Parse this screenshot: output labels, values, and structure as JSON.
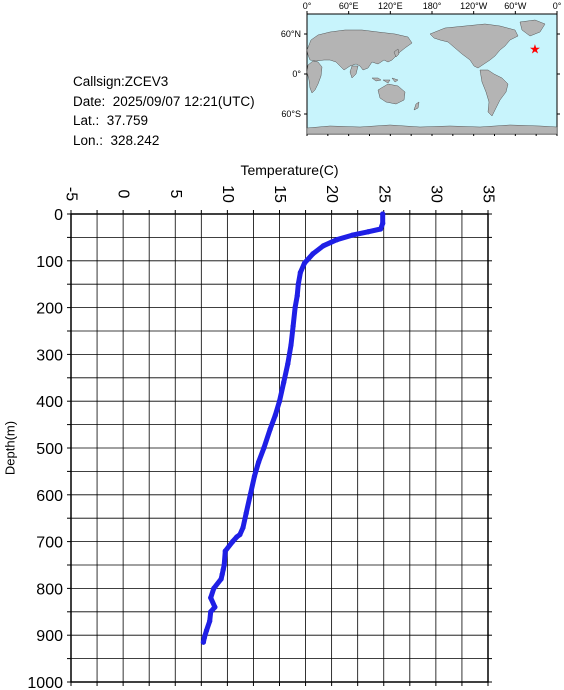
{
  "info": {
    "callsign": "Callsign:ZCEV3",
    "date": "Date:  2025/09/07 12:21(UTC)",
    "lat": "Lat.:  37.759",
    "lon": "Lon.:  328.242"
  },
  "map": {
    "lon_ticks": [
      "0°",
      "60°E",
      "120°E",
      "180°",
      "120°W",
      "60°W",
      "0°"
    ],
    "lat_ticks": [
      "60°N",
      "0°",
      "60°S"
    ],
    "ocean_color": "#c8f4fc",
    "land_color": "#b4b4b4",
    "marker_color": "#ff0000",
    "marker": {
      "lon": 328.242,
      "lat": 37.759
    }
  },
  "chart_data": {
    "type": "line",
    "title": "",
    "xlabel": "Temperature(C)",
    "ylabel": "Depth(m)",
    "xlim": [
      -5,
      35
    ],
    "ylim": [
      0,
      1000
    ],
    "y_inverted": true,
    "x_ticks": [
      "-5",
      "0",
      "5",
      "10",
      "15",
      "20",
      "25",
      "30",
      "35"
    ],
    "y_ticks": [
      "0",
      "100",
      "200",
      "300",
      "400",
      "500",
      "600",
      "700",
      "800",
      "900",
      "1000"
    ],
    "grid": true,
    "series_color": "#1f1fe6",
    "series": [
      {
        "temperature": [
          24.9,
          24.9,
          24.7,
          23.5,
          22.0,
          20.5,
          19.2,
          18.2,
          17.4,
          17.0,
          16.8,
          16.7,
          16.5,
          16.3,
          16.1,
          15.8,
          15.4,
          15.0,
          14.6,
          14.1,
          13.5,
          13.0,
          12.6,
          12.2,
          11.8,
          11.5,
          11.2,
          10.9,
          10.5,
          9.8,
          9.7,
          9.6,
          9.5,
          9.4,
          8.7,
          8.4,
          8.8,
          8.4,
          8.3,
          8.0,
          7.8,
          7.7
        ],
        "depth": [
          0,
          20,
          32,
          38,
          45,
          55,
          68,
          85,
          105,
          125,
          150,
          175,
          200,
          240,
          280,
          320,
          360,
          400,
          430,
          460,
          500,
          530,
          560,
          600,
          640,
          670,
          685,
          690,
          700,
          720,
          750,
          760,
          770,
          780,
          800,
          820,
          840,
          850,
          870,
          890,
          905,
          915
        ]
      }
    ]
  }
}
